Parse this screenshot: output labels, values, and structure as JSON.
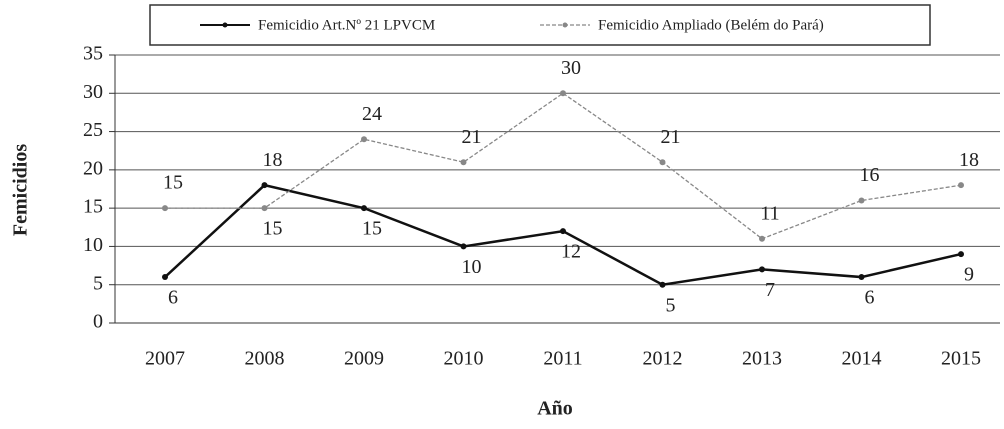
{
  "chart_data": {
    "type": "line",
    "categories": [
      "2007",
      "2008",
      "2009",
      "2010",
      "2011",
      "2012",
      "2013",
      "2014",
      "2015"
    ],
    "series": [
      {
        "name": "Femicidio Art.Nº 21 LPVCM",
        "color": "#111111",
        "values": [
          6,
          18,
          15,
          10,
          12,
          5,
          7,
          6,
          9
        ]
      },
      {
        "name": "Femicidio Ampliado (Belém do Pará)",
        "color": "#888888",
        "values": [
          15,
          15,
          24,
          21,
          30,
          21,
          11,
          16,
          18
        ]
      }
    ],
    "ylabel": "Femicidios",
    "xlabel": "Año",
    "ylim": [
      0,
      35
    ],
    "yticks": [
      0,
      5,
      10,
      15,
      20,
      25,
      30,
      35
    ],
    "grid": true,
    "legend": "top"
  }
}
